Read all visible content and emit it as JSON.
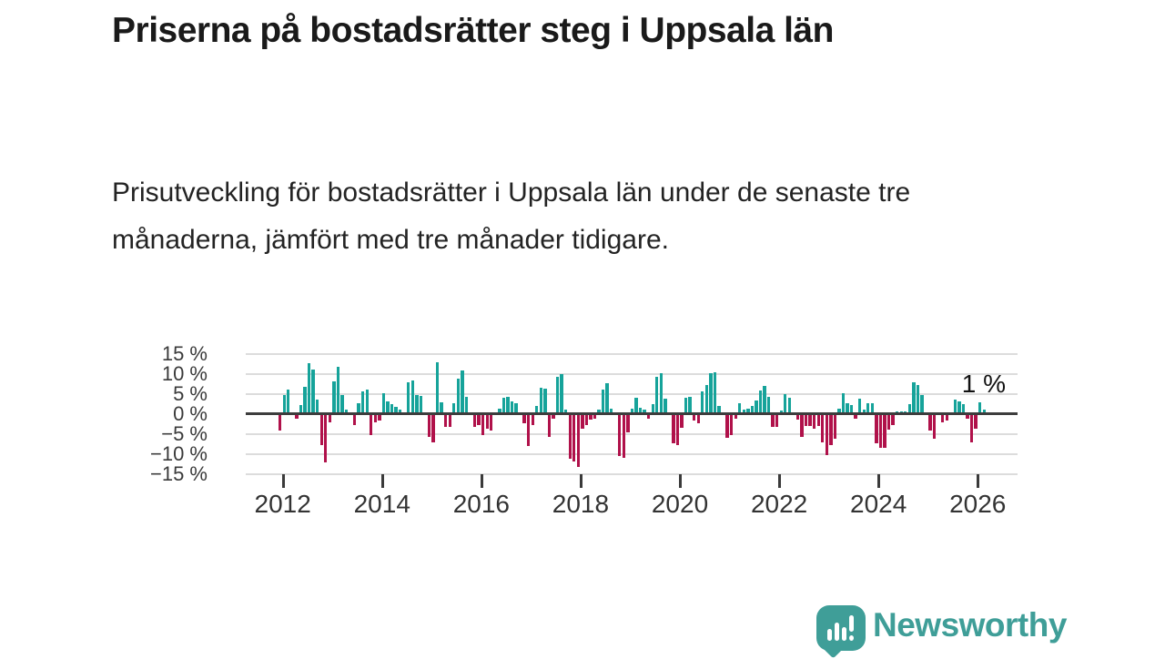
{
  "page": {
    "title": "Priserna på bostadsrätter steg i Uppsala län",
    "subtitle": "Prisutveckling för bostadsrätter i Uppsala län under de senaste tre månaderna, jämfört med tre månader tidigare."
  },
  "branding": {
    "logo_text": "Newsworthy",
    "logo_color": "#3f9e98",
    "logo_icon": "speech-bubble-with-bar-chart-and-exclamation"
  },
  "chart_data": {
    "type": "bar",
    "title": "Priserna på bostadsrätter steg i Uppsala län",
    "subtitle": "Prisutveckling för bostadsrätter i Uppsala län under de senaste tre månaderna, jämfört med tre månader tidigare.",
    "unit": "%",
    "frequency": "monthly",
    "start_month": "2012-01",
    "end_month": "2026-03",
    "latest_value_label": "1 %",
    "grid": true,
    "ylim": [
      -15,
      15
    ],
    "yticks": [
      15,
      10,
      5,
      0,
      -5,
      -10,
      -15
    ],
    "ytick_labels": [
      "15 %",
      "10 %",
      "5 %",
      "0 %",
      "−5 %",
      "−10 %",
      "−15 %"
    ],
    "xticks": [
      2012,
      2014,
      2016,
      2018,
      2020,
      2022,
      2024,
      2026
    ],
    "xtick_labels": [
      "2012",
      "2014",
      "2016",
      "2018",
      "2020",
      "2022",
      "2024",
      "2026"
    ],
    "colors": {
      "positive": "#16a39a",
      "negative": "#b0114a",
      "zero_line": "#3d3d3d",
      "gridline": "#dcdcdc",
      "axis_text": "#3a3a3a"
    },
    "values": [
      -4,
      4.5,
      6,
      0,
      -1,
      2,
      6.5,
      12.5,
      11,
      3.5,
      -7.5,
      -12,
      -2,
      8,
      11.5,
      4.5,
      1,
      0,
      -2.5,
      2.5,
      5.5,
      6,
      -5,
      -2,
      -1.5,
      5,
      3,
      2.2,
      1.6,
      1,
      0,
      7.8,
      8.2,
      4.6,
      4.4,
      0,
      -5.5,
      -7,
      12.7,
      2.8,
      -3,
      -3,
      2.6,
      8.7,
      10.7,
      4,
      0,
      -3,
      -2.5,
      -5.2,
      -3.6,
      -4,
      0,
      1.2,
      3.8,
      4,
      3,
      2.5,
      0,
      -2.2,
      -7.8,
      -2.5,
      1.8,
      6.4,
      6.2,
      -5.5,
      -1,
      9,
      9.8,
      1,
      -11,
      -11.6,
      -13,
      -3.5,
      -2.5,
      -1.2,
      -1,
      1,
      6,
      7.6,
      1.2,
      0,
      -10.4,
      -10.8,
      -4.4,
      1.2,
      3.8,
      1.4,
      0.8,
      -1,
      2.2,
      9,
      10,
      3.6,
      0,
      -7.2,
      -7.6,
      -3.2,
      3.8,
      4,
      -1.4,
      -2.2,
      5.4,
      7,
      10,
      10.2,
      1.8,
      0,
      -5.8,
      -5,
      -1,
      2.5,
      0.8,
      1.2,
      1.8,
      3.2,
      5.6,
      6.8,
      4,
      -3,
      -3,
      0.6,
      4.8,
      3.8,
      0,
      -1.2,
      -5.6,
      -2.8,
      -2.8,
      -3.6,
      -2.8,
      -7,
      -10,
      -7.5,
      -6,
      1.2,
      5,
      2.5,
      2,
      -1,
      3.6,
      0.8,
      2.5,
      2.5,
      -7.2,
      -8.2,
      -8.2,
      -3.8,
      -2.5,
      0.4,
      0.4,
      0.5,
      2.2,
      7.8,
      7,
      4.6,
      0,
      -4,
      -6,
      0,
      -2,
      -1.5,
      0,
      3.5,
      3,
      2.3,
      -1,
      -7,
      -3.5,
      2.8,
      1
    ]
  }
}
